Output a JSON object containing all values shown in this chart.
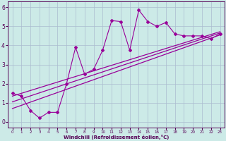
{
  "xlabel": "Windchill (Refroidissement éolien,°C)",
  "x_data": [
    0,
    1,
    2,
    3,
    4,
    5,
    6,
    7,
    8,
    9,
    10,
    11,
    12,
    13,
    14,
    15,
    16,
    17,
    18,
    19,
    20,
    21,
    22,
    23
  ],
  "y_data": [
    1.5,
    1.35,
    0.6,
    0.2,
    0.5,
    0.5,
    2.0,
    3.9,
    2.5,
    2.75,
    3.75,
    5.3,
    5.25,
    3.75,
    5.85,
    5.25,
    5.0,
    5.2,
    4.6,
    4.5,
    4.5,
    4.5,
    4.35,
    4.6
  ],
  "trend1_x": [
    0,
    23
  ],
  "trend1_y": [
    0.7,
    4.55
  ],
  "trend2_x": [
    0,
    23
  ],
  "trend2_y": [
    1.05,
    4.65
  ],
  "trend3_x": [
    0,
    23
  ],
  "trend3_y": [
    1.35,
    4.72
  ],
  "line_color": "#990099",
  "bg_color": "#cceae7",
  "grid_color": "#aabbd0",
  "xlim": [
    -0.5,
    23.5
  ],
  "ylim": [
    -0.3,
    6.3
  ],
  "xticks": [
    0,
    1,
    2,
    3,
    4,
    5,
    6,
    7,
    8,
    9,
    10,
    11,
    12,
    13,
    14,
    15,
    16,
    17,
    18,
    19,
    20,
    21,
    22,
    23
  ],
  "yticks": [
    0,
    1,
    2,
    3,
    4,
    5,
    6
  ]
}
